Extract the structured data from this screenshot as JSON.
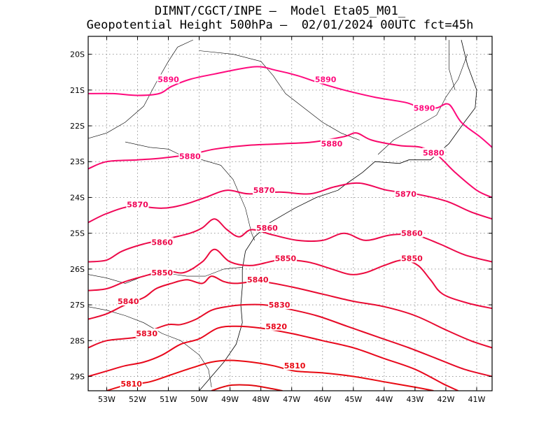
{
  "title_line1": "DIMNT/CGCT/INPE —  Model Eta05_M01_",
  "title_line2": "Geopotential Height 500hPa —  02/01/2024 00UTC fct=45h",
  "map": {
    "lon_range": [
      -53.6,
      -40.5
    ],
    "lat_range": [
      -29.4,
      -19.5
    ],
    "lat_ticks": [
      "20S",
      "21S",
      "22S",
      "23S",
      "24S",
      "25S",
      "26S",
      "27S",
      "28S",
      "29S"
    ],
    "lon_ticks": [
      "53W",
      "52W",
      "51W",
      "50W",
      "49W",
      "48W",
      "47W",
      "46W",
      "45W",
      "44W",
      "43W",
      "42W",
      "41W"
    ],
    "grid": true,
    "contour_colors": {
      "5890": "#ff0a7e",
      "5880": "#f8086a",
      "5870": "#f00658",
      "5860": "#ec0a4a",
      "5850": "#ec0a3e",
      "5840": "#e80a30",
      "5830": "#e60a26",
      "5820": "#e8081c",
      "5810": "#e80a12"
    },
    "contours": [
      {
        "level": "5890",
        "points": [
          [
            -53.6,
            -21.1
          ],
          [
            -52.8,
            -21.1
          ],
          [
            -52.0,
            -21.15
          ],
          [
            -51.3,
            -21.1
          ],
          [
            -50.9,
            -20.9
          ],
          [
            -50.3,
            -20.7
          ],
          [
            -49.5,
            -20.55
          ],
          [
            -48.2,
            -20.35
          ],
          [
            -47.5,
            -20.45
          ],
          [
            -46.8,
            -20.6
          ],
          [
            -46.1,
            -20.8
          ],
          [
            -45.3,
            -21.0
          ],
          [
            -44.3,
            -21.2
          ],
          [
            -43.3,
            -21.35
          ],
          [
            -42.8,
            -21.5
          ],
          [
            -42.3,
            -21.5
          ],
          [
            -41.9,
            -21.4
          ],
          [
            -41.5,
            -21.9
          ],
          [
            -40.9,
            -22.3
          ],
          [
            -40.5,
            -22.6
          ]
        ],
        "labels": [
          [
            -51.0,
            -20.7
          ],
          [
            -45.9,
            -20.7
          ],
          [
            -42.7,
            -21.5
          ]
        ]
      },
      {
        "level": "5880",
        "points": [
          [
            -53.6,
            -23.2
          ],
          [
            -53.0,
            -23.0
          ],
          [
            -52.0,
            -22.95
          ],
          [
            -51.2,
            -22.9
          ],
          [
            -50.3,
            -22.8
          ],
          [
            -49.5,
            -22.65
          ],
          [
            -48.5,
            -22.55
          ],
          [
            -47.3,
            -22.5
          ],
          [
            -46.3,
            -22.45
          ],
          [
            -45.3,
            -22.3
          ],
          [
            -44.9,
            -22.2
          ],
          [
            -44.4,
            -22.4
          ],
          [
            -43.5,
            -22.55
          ],
          [
            -42.8,
            -22.6
          ],
          [
            -42.3,
            -22.8
          ],
          [
            -41.7,
            -23.3
          ],
          [
            -41.0,
            -23.8
          ],
          [
            -40.5,
            -24.0
          ]
        ],
        "labels": [
          [
            -50.3,
            -22.85
          ],
          [
            -45.7,
            -22.5
          ],
          [
            -42.4,
            -22.75
          ]
        ]
      },
      {
        "level": "5870",
        "points": [
          [
            -53.6,
            -24.7
          ],
          [
            -53.0,
            -24.45
          ],
          [
            -52.2,
            -24.25
          ],
          [
            -51.2,
            -24.3
          ],
          [
            -50.5,
            -24.2
          ],
          [
            -49.8,
            -24.0
          ],
          [
            -49.1,
            -23.8
          ],
          [
            -48.4,
            -23.9
          ],
          [
            -47.4,
            -23.85
          ],
          [
            -46.4,
            -23.9
          ],
          [
            -45.6,
            -23.7
          ],
          [
            -44.8,
            -23.6
          ],
          [
            -43.9,
            -23.8
          ],
          [
            -43.0,
            -23.9
          ],
          [
            -42.0,
            -24.1
          ],
          [
            -41.2,
            -24.4
          ],
          [
            -40.5,
            -24.6
          ]
        ],
        "labels": [
          [
            -52.0,
            -24.2
          ],
          [
            -47.9,
            -23.8
          ],
          [
            -43.3,
            -23.9
          ]
        ]
      },
      {
        "level": "5860",
        "points": [
          [
            -53.6,
            -25.8
          ],
          [
            -53.0,
            -25.75
          ],
          [
            -52.5,
            -25.5
          ],
          [
            -51.8,
            -25.3
          ],
          [
            -51.0,
            -25.15
          ],
          [
            -50.3,
            -25.0
          ],
          [
            -49.9,
            -24.85
          ],
          [
            -49.5,
            -24.6
          ],
          [
            -49.1,
            -24.9
          ],
          [
            -48.7,
            -25.1
          ],
          [
            -48.3,
            -24.9
          ],
          [
            -47.6,
            -25.05
          ],
          [
            -46.8,
            -25.2
          ],
          [
            -46.0,
            -25.2
          ],
          [
            -45.3,
            -25.0
          ],
          [
            -44.6,
            -25.2
          ],
          [
            -43.8,
            -25.05
          ],
          [
            -43.0,
            -25.05
          ],
          [
            -42.2,
            -25.3
          ],
          [
            -41.4,
            -25.6
          ],
          [
            -40.5,
            -25.8
          ]
        ],
        "labels": [
          [
            -51.2,
            -25.25
          ],
          [
            -47.8,
            -24.85
          ],
          [
            -43.1,
            -25.0
          ]
        ]
      },
      {
        "level": "5850",
        "points": [
          [
            -53.6,
            -26.6
          ],
          [
            -53.0,
            -26.55
          ],
          [
            -52.4,
            -26.35
          ],
          [
            -51.8,
            -26.2
          ],
          [
            -51.1,
            -26.05
          ],
          [
            -50.5,
            -26.1
          ],
          [
            -49.9,
            -25.8
          ],
          [
            -49.5,
            -25.45
          ],
          [
            -49.0,
            -25.8
          ],
          [
            -48.3,
            -25.9
          ],
          [
            -47.4,
            -25.75
          ],
          [
            -46.5,
            -25.8
          ],
          [
            -45.7,
            -26.0
          ],
          [
            -45.1,
            -26.15
          ],
          [
            -44.6,
            -26.1
          ],
          [
            -44.0,
            -25.9
          ],
          [
            -43.4,
            -25.75
          ],
          [
            -42.9,
            -25.9
          ],
          [
            -42.5,
            -26.3
          ],
          [
            -42.1,
            -26.7
          ],
          [
            -41.3,
            -26.95
          ],
          [
            -40.5,
            -27.1
          ]
        ],
        "labels": [
          [
            -51.2,
            -26.1
          ],
          [
            -47.2,
            -25.7
          ],
          [
            -43.1,
            -25.7
          ]
        ]
      },
      {
        "level": "5840",
        "points": [
          [
            -53.6,
            -27.4
          ],
          [
            -53.0,
            -27.25
          ],
          [
            -52.4,
            -27.0
          ],
          [
            -51.8,
            -26.8
          ],
          [
            -51.4,
            -26.55
          ],
          [
            -50.9,
            -26.4
          ],
          [
            -50.4,
            -26.3
          ],
          [
            -49.9,
            -26.4
          ],
          [
            -49.6,
            -26.2
          ],
          [
            -49.2,
            -26.35
          ],
          [
            -48.8,
            -26.4
          ],
          [
            -48.0,
            -26.35
          ],
          [
            -47.0,
            -26.5
          ],
          [
            -46.0,
            -26.7
          ],
          [
            -45.0,
            -26.9
          ],
          [
            -44.0,
            -27.05
          ],
          [
            -43.0,
            -27.3
          ],
          [
            -42.0,
            -27.7
          ],
          [
            -41.2,
            -28.0
          ],
          [
            -40.5,
            -28.2
          ]
        ],
        "labels": [
          [
            -52.3,
            -26.9
          ],
          [
            -48.1,
            -26.3
          ]
        ]
      },
      {
        "level": "5830",
        "points": [
          [
            -53.6,
            -28.2
          ],
          [
            -53.0,
            -28.0
          ],
          [
            -52.0,
            -27.9
          ],
          [
            -51.5,
            -27.7
          ],
          [
            -51.0,
            -27.55
          ],
          [
            -50.6,
            -27.55
          ],
          [
            -50.1,
            -27.4
          ],
          [
            -49.6,
            -27.15
          ],
          [
            -49.1,
            -27.05
          ],
          [
            -48.6,
            -27.0
          ],
          [
            -47.9,
            -27.0
          ],
          [
            -47.2,
            -27.1
          ],
          [
            -46.2,
            -27.3
          ],
          [
            -45.2,
            -27.6
          ],
          [
            -44.2,
            -27.9
          ],
          [
            -43.2,
            -28.2
          ],
          [
            -42.3,
            -28.5
          ],
          [
            -41.4,
            -28.8
          ],
          [
            -40.5,
            -29.0
          ]
        ],
        "labels": [
          [
            -51.7,
            -27.8
          ],
          [
            -47.4,
            -27.0
          ]
        ]
      },
      {
        "level": "5820",
        "points": [
          [
            -53.6,
            -29.0
          ],
          [
            -53.0,
            -28.85
          ],
          [
            -52.4,
            -28.7
          ],
          [
            -51.8,
            -28.6
          ],
          [
            -51.2,
            -28.4
          ],
          [
            -50.6,
            -28.1
          ],
          [
            -50.0,
            -27.95
          ],
          [
            -49.4,
            -27.65
          ],
          [
            -48.8,
            -27.6
          ],
          [
            -48.0,
            -27.65
          ],
          [
            -47.0,
            -27.8
          ],
          [
            -46.0,
            -28.0
          ],
          [
            -45.0,
            -28.2
          ],
          [
            -44.0,
            -28.5
          ],
          [
            -43.0,
            -28.8
          ],
          [
            -42.1,
            -29.2
          ],
          [
            -41.6,
            -29.4
          ]
        ],
        "labels": [
          [
            -47.5,
            -27.6
          ]
        ]
      },
      {
        "level": "5810",
        "points": [
          [
            -53.0,
            -29.4
          ],
          [
            -52.4,
            -29.25
          ],
          [
            -51.6,
            -29.15
          ],
          [
            -50.9,
            -28.95
          ],
          [
            -50.2,
            -28.75
          ],
          [
            -49.6,
            -28.6
          ],
          [
            -49.0,
            -28.55
          ],
          [
            -48.3,
            -28.6
          ],
          [
            -47.6,
            -28.7
          ],
          [
            -46.9,
            -28.85
          ],
          [
            -46.0,
            -28.9
          ],
          [
            -45.0,
            -29.0
          ],
          [
            -44.0,
            -29.15
          ],
          [
            -43.0,
            -29.3
          ],
          [
            -42.4,
            -29.4
          ]
        ],
        "labels": [
          [
            -52.2,
            -29.2
          ],
          [
            -46.9,
            -28.7
          ]
        ]
      },
      {
        "level": "5800",
        "points": [
          [
            -49.6,
            -29.4
          ],
          [
            -49.0,
            -29.25
          ],
          [
            -48.3,
            -29.25
          ],
          [
            -47.6,
            -29.35
          ],
          [
            -47.3,
            -29.4
          ]
        ],
        "labels": []
      }
    ],
    "coastline": [
      [
        -41.5,
        -19.6
      ],
      [
        -41.3,
        -20.3
      ],
      [
        -41.0,
        -21.0
      ],
      [
        -41.05,
        -21.5
      ],
      [
        -41.4,
        -21.9
      ],
      [
        -41.9,
        -22.5
      ],
      [
        -42.5,
        -22.95
      ],
      [
        -43.2,
        -22.95
      ],
      [
        -43.5,
        -23.05
      ],
      [
        -44.3,
        -23.0
      ],
      [
        -44.7,
        -23.3
      ],
      [
        -45.2,
        -23.6
      ],
      [
        -45.5,
        -23.8
      ],
      [
        -46.2,
        -24.0
      ],
      [
        -46.9,
        -24.3
      ],
      [
        -47.7,
        -24.7
      ],
      [
        -48.2,
        -25.1
      ],
      [
        -48.5,
        -25.5
      ],
      [
        -48.6,
        -26.0
      ],
      [
        -48.6,
        -26.5
      ],
      [
        -48.65,
        -27.0
      ],
      [
        -48.6,
        -27.5
      ],
      [
        -48.8,
        -28.1
      ],
      [
        -49.2,
        -28.6
      ],
      [
        -49.7,
        -29.1
      ],
      [
        -50.0,
        -29.4
      ]
    ],
    "borders": [
      [
        [
          -53.6,
          -22.35
        ],
        [
          -53.0,
          -22.2
        ],
        [
          -52.4,
          -21.9
        ],
        [
          -51.8,
          -21.45
        ],
        [
          -51.4,
          -20.8
        ],
        [
          -51.0,
          -20.2
        ],
        [
          -50.7,
          -19.8
        ],
        [
          -50.2,
          -19.6
        ]
      ],
      [
        [
          -52.4,
          -22.45
        ],
        [
          -51.6,
          -22.6
        ],
        [
          -51.0,
          -22.65
        ],
        [
          -50.4,
          -22.9
        ],
        [
          -49.9,
          -22.95
        ],
        [
          -49.3,
          -23.1
        ],
        [
          -48.9,
          -23.5
        ],
        [
          -48.5,
          -24.3
        ],
        [
          -48.3,
          -25.0
        ],
        [
          -48.2,
          -25.2
        ]
      ],
      [
        [
          -53.6,
          -26.15
        ],
        [
          -53.0,
          -26.25
        ],
        [
          -52.4,
          -26.4
        ],
        [
          -51.8,
          -26.2
        ],
        [
          -51.2,
          -26.1
        ],
        [
          -50.4,
          -26.2
        ],
        [
          -49.8,
          -26.2
        ],
        [
          -49.2,
          -26.0
        ],
        [
          -48.6,
          -25.95
        ]
      ],
      [
        [
          -53.6,
          -27.05
        ],
        [
          -53.0,
          -27.15
        ],
        [
          -52.4,
          -27.3
        ],
        [
          -51.8,
          -27.5
        ],
        [
          -51.2,
          -27.8
        ],
        [
          -50.6,
          -28.0
        ],
        [
          -50.0,
          -28.4
        ],
        [
          -49.7,
          -28.8
        ],
        [
          -49.6,
          -29.3
        ]
      ],
      [
        [
          -44.8,
          -22.4
        ],
        [
          -45.4,
          -22.2
        ],
        [
          -46.0,
          -21.9
        ],
        [
          -46.6,
          -21.5
        ],
        [
          -47.2,
          -21.1
        ],
        [
          -47.6,
          -20.6
        ],
        [
          -48.0,
          -20.2
        ],
        [
          -48.9,
          -20.0
        ],
        [
          -50.0,
          -19.9
        ]
      ],
      [
        [
          -44.2,
          -22.8
        ],
        [
          -43.7,
          -22.4
        ],
        [
          -43.0,
          -22.05
        ],
        [
          -42.3,
          -21.7
        ],
        [
          -42.0,
          -21.2
        ],
        [
          -41.6,
          -20.7
        ],
        [
          -41.3,
          -20.0
        ]
      ],
      [
        [
          -41.9,
          -19.6
        ],
        [
          -41.9,
          -20.4
        ],
        [
          -41.7,
          -21.0
        ]
      ]
    ]
  }
}
